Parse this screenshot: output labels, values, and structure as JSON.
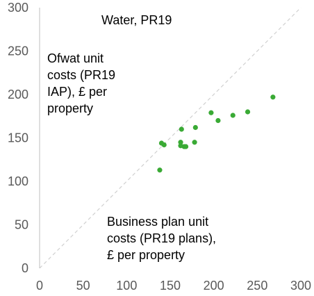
{
  "chart_data": {
    "type": "scatter",
    "title": "Water, PR19",
    "ylabel_lines": [
      "Ofwat unit",
      "costs (PR19",
      "IAP), £ per",
      "property"
    ],
    "xlabel_lines": [
      "Business plan unit",
      "costs (PR19 plans),",
      "£ per property"
    ],
    "xlim": [
      0,
      300
    ],
    "ylim": [
      0,
      300
    ],
    "xticks": [
      "0",
      "50",
      "100",
      "150",
      "200",
      "250",
      "300"
    ],
    "yticks": [
      "0",
      "50",
      "100",
      "150",
      "200",
      "250",
      "300"
    ],
    "grid": false,
    "reference_line": "y = x",
    "colors": {
      "points": "#3aaa35",
      "reference": "#d0d0d0",
      "ticks": "#595959"
    },
    "points": [
      {
        "x": 138,
        "y": 113
      },
      {
        "x": 140,
        "y": 144
      },
      {
        "x": 143,
        "y": 142
      },
      {
        "x": 162,
        "y": 145
      },
      {
        "x": 162,
        "y": 141
      },
      {
        "x": 163,
        "y": 160
      },
      {
        "x": 166,
        "y": 140
      },
      {
        "x": 168,
        "y": 140
      },
      {
        "x": 178,
        "y": 145
      },
      {
        "x": 179,
        "y": 162
      },
      {
        "x": 197,
        "y": 179
      },
      {
        "x": 205,
        "y": 170
      },
      {
        "x": 222,
        "y": 176
      },
      {
        "x": 239,
        "y": 180
      },
      {
        "x": 268,
        "y": 197
      }
    ]
  }
}
